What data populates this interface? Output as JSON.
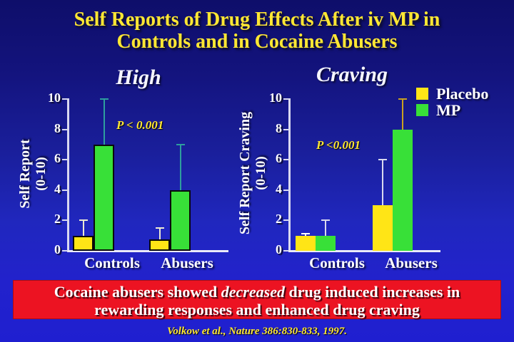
{
  "slide": {
    "title_line1": "Self Reports of Drug Effects After iv MP in",
    "title_line2": "Controls and in Cocaine Abusers"
  },
  "legend": {
    "position": "top-right",
    "items": [
      {
        "label": "Placebo",
        "color": "#ffe516"
      },
      {
        "label": "MP",
        "color": "#38e038"
      }
    ]
  },
  "chart_data": [
    {
      "type": "bar",
      "title": "High",
      "ylabel": "Self Report (0-10)",
      "ylabel_lines": [
        "Self Report",
        "(0-10)"
      ],
      "ylim": [
        0,
        10
      ],
      "yticks": [
        0,
        2,
        4,
        6,
        8,
        10
      ],
      "categories": [
        "Controls",
        "Abusers"
      ],
      "annotation": "P < 0.001",
      "bar_outline": true,
      "series": [
        {
          "name": "Placebo",
          "color": "#ffe516",
          "values": [
            1,
            0.75
          ],
          "errors_upper": [
            1,
            0.75
          ],
          "error_colors": [
            "#ece9d2",
            "#ece9d2"
          ]
        },
        {
          "name": "MP",
          "color": "#38e038",
          "values": [
            7,
            4
          ],
          "errors_upper": [
            3,
            3
          ],
          "error_colors": [
            "#2e9e9e",
            "#2e9e9e"
          ]
        }
      ]
    },
    {
      "type": "bar",
      "title": "Craving",
      "ylabel": "Self Report Craving (0-10)",
      "ylabel_lines": [
        "Self Report Craving",
        "(0-10)"
      ],
      "ylim": [
        0,
        10
      ],
      "yticks": [
        0,
        2,
        4,
        6,
        8,
        10
      ],
      "categories": [
        "Controls",
        "Abusers"
      ],
      "annotation": "P <0.001",
      "bar_outline": false,
      "series": [
        {
          "name": "Placebo",
          "color": "#ffe516",
          "values": [
            1,
            3
          ],
          "errors_upper": [
            0.15,
            3
          ],
          "error_colors": [
            "#ffffff",
            "#d9d9ee"
          ]
        },
        {
          "name": "MP",
          "color": "#38e038",
          "values": [
            1,
            8
          ],
          "errors_upper": [
            1,
            2
          ],
          "error_colors": [
            "#d9d9ee",
            "#c9a021"
          ]
        }
      ]
    }
  ],
  "banner": {
    "line1_pre": "Cocaine abusers showed ",
    "line1_italic": "decreased",
    "line1_post": " drug induced increases in",
    "line2": "rewarding responses and enhanced drug craving"
  },
  "citation": "Volkow et al., Nature 386:830-833, 1997.",
  "colors": {
    "background_top": "#0e0e6a",
    "background_bottom": "#2222cc",
    "title_yellow": "#ffe733",
    "text_white": "#ffffff",
    "banner_red": "#ec1322",
    "annotation_yellow": "#ffe733"
  }
}
